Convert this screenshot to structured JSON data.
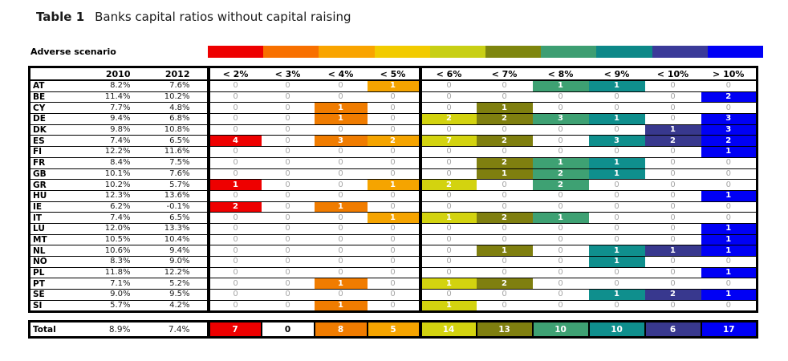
{
  "title": {
    "prefix": "Table 1",
    "text": "Banks capital ratios without capital raising"
  },
  "adverse_scenario_label": "Adverse scenario",
  "chart_data": {
    "type": "table",
    "title": "Table 1 Banks capital ratios without capital raising",
    "legend_label": "Adverse scenario",
    "legend_colors": [
      "#EE0000",
      "#F87000",
      "#F9A400",
      "#F2CB00",
      "#C8CF14",
      "#7E860E",
      "#3D9E72",
      "#0D8888",
      "#3A3A99",
      "#0000F5"
    ],
    "year_headers": [
      "2010",
      "2012"
    ],
    "bucket_headers": [
      "< 2%",
      "< 3%",
      "< 4%",
      "< 5%",
      "< 6%",
      "< 7%",
      "< 8%",
      "< 9%",
      "< 10%",
      "> 10%"
    ],
    "bucket_colors": [
      "#EE0000",
      "#F87000",
      "#F07C00",
      "#F5A400",
      "#D3D30F",
      "#7F7F0F",
      "#3EA173",
      "#0F8F8D",
      "#38388E",
      "#0000F5"
    ],
    "zero_text_color": "#A6A6A6",
    "rows": [
      {
        "label": "AT",
        "y2010": "8.2%",
        "y2012": "7.6%",
        "buckets": [
          0,
          0,
          0,
          1,
          0,
          0,
          1,
          1,
          0,
          0
        ]
      },
      {
        "label": "BE",
        "y2010": "11.4%",
        "y2012": "10.2%",
        "buckets": [
          0,
          0,
          0,
          0,
          0,
          0,
          0,
          0,
          0,
          2
        ]
      },
      {
        "label": "CY",
        "y2010": "7.7%",
        "y2012": "4.8%",
        "buckets": [
          0,
          0,
          1,
          0,
          0,
          1,
          0,
          0,
          0,
          0
        ]
      },
      {
        "label": "DE",
        "y2010": "9.4%",
        "y2012": "6.8%",
        "buckets": [
          0,
          0,
          1,
          0,
          2,
          2,
          3,
          1,
          0,
          3
        ]
      },
      {
        "label": "DK",
        "y2010": "9.8%",
        "y2012": "10.8%",
        "buckets": [
          0,
          0,
          0,
          0,
          0,
          0,
          0,
          0,
          1,
          3
        ]
      },
      {
        "label": "ES",
        "y2010": "7.4%",
        "y2012": "6.5%",
        "buckets": [
          4,
          0,
          3,
          2,
          7,
          2,
          0,
          3,
          2,
          2
        ]
      },
      {
        "label": "FI",
        "y2010": "12.2%",
        "y2012": "11.6%",
        "buckets": [
          0,
          0,
          0,
          0,
          0,
          0,
          0,
          0,
          0,
          1
        ]
      },
      {
        "label": "FR",
        "y2010": "8.4%",
        "y2012": "7.5%",
        "buckets": [
          0,
          0,
          0,
          0,
          0,
          2,
          1,
          1,
          0,
          0
        ]
      },
      {
        "label": "GB",
        "y2010": "10.1%",
        "y2012": "7.6%",
        "buckets": [
          0,
          0,
          0,
          0,
          0,
          1,
          2,
          1,
          0,
          0
        ]
      },
      {
        "label": "GR",
        "y2010": "10.2%",
        "y2012": "5.7%",
        "buckets": [
          1,
          0,
          0,
          1,
          2,
          0,
          2,
          0,
          0,
          0
        ]
      },
      {
        "label": "HU",
        "y2010": "12.3%",
        "y2012": "13.6%",
        "buckets": [
          0,
          0,
          0,
          0,
          0,
          0,
          0,
          0,
          0,
          1
        ]
      },
      {
        "label": "IE",
        "y2010": "6.2%",
        "y2012": "-0.1%",
        "buckets": [
          2,
          0,
          1,
          0,
          0,
          0,
          0,
          0,
          0,
          0
        ]
      },
      {
        "label": "IT",
        "y2010": "7.4%",
        "y2012": "6.5%",
        "buckets": [
          0,
          0,
          0,
          1,
          1,
          2,
          1,
          0,
          0,
          0
        ]
      },
      {
        "label": "LU",
        "y2010": "12.0%",
        "y2012": "13.3%",
        "buckets": [
          0,
          0,
          0,
          0,
          0,
          0,
          0,
          0,
          0,
          1
        ]
      },
      {
        "label": "MT",
        "y2010": "10.5%",
        "y2012": "10.4%",
        "buckets": [
          0,
          0,
          0,
          0,
          0,
          0,
          0,
          0,
          0,
          1
        ]
      },
      {
        "label": "NL",
        "y2010": "10.6%",
        "y2012": "9.4%",
        "buckets": [
          0,
          0,
          0,
          0,
          0,
          1,
          0,
          1,
          1,
          1
        ]
      },
      {
        "label": "NO",
        "y2010": "8.3%",
        "y2012": "9.0%",
        "buckets": [
          0,
          0,
          0,
          0,
          0,
          0,
          0,
          1,
          0,
          0
        ]
      },
      {
        "label": "PL",
        "y2010": "11.8%",
        "y2012": "12.2%",
        "buckets": [
          0,
          0,
          0,
          0,
          0,
          0,
          0,
          0,
          0,
          1
        ]
      },
      {
        "label": "PT",
        "y2010": "7.1%",
        "y2012": "5.2%",
        "buckets": [
          0,
          0,
          1,
          0,
          1,
          2,
          0,
          0,
          0,
          0
        ]
      },
      {
        "label": "SE",
        "y2010": "9.0%",
        "y2012": "9.5%",
        "buckets": [
          0,
          0,
          0,
          0,
          0,
          0,
          0,
          1,
          2,
          1
        ]
      },
      {
        "label": "SI",
        "y2010": "5.7%",
        "y2012": "4.2%",
        "buckets": [
          0,
          0,
          1,
          0,
          1,
          0,
          0,
          0,
          0,
          0
        ]
      }
    ],
    "total": {
      "label": "Total",
      "y2010": "8.9%",
      "y2012": "7.4%",
      "buckets": [
        7,
        0,
        8,
        5,
        14,
        13,
        10,
        10,
        6,
        17
      ]
    }
  }
}
